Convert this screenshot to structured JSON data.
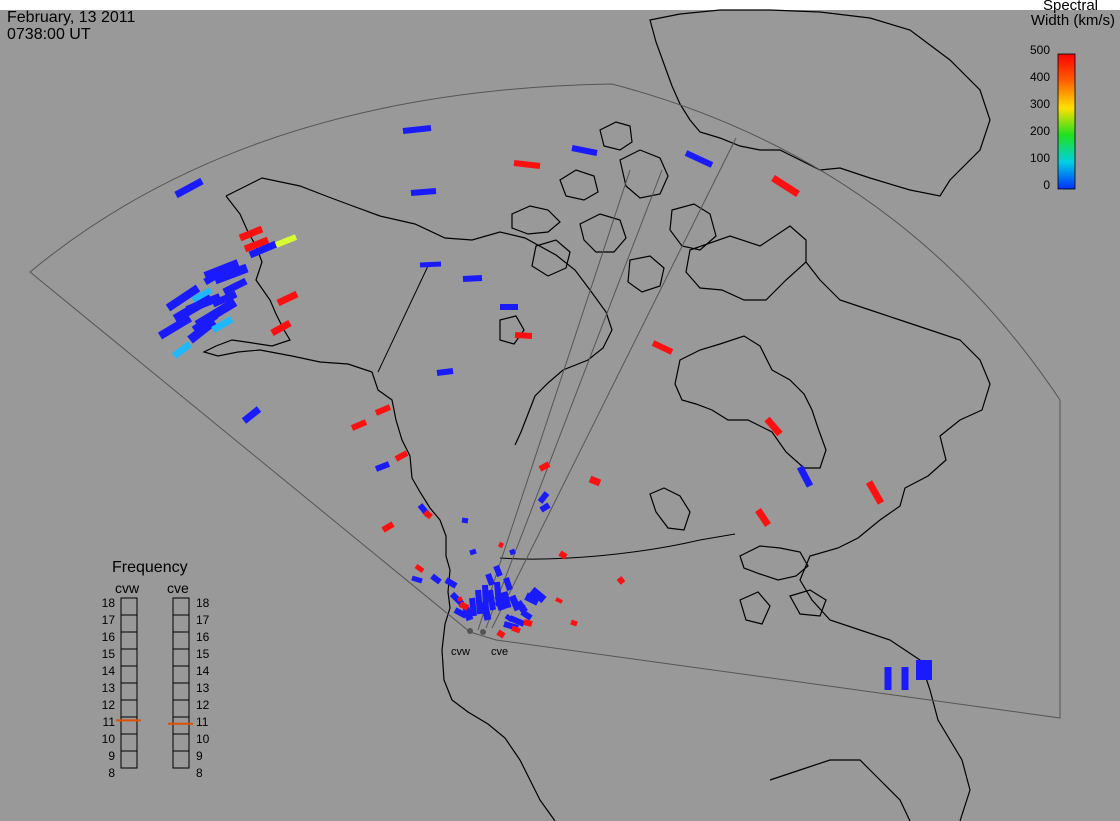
{
  "header": {
    "date": "February, 13 2011",
    "time": "0738:00 UT"
  },
  "colorbar": {
    "title_line1": "Spectral",
    "title_line2": "Width (km/s)",
    "ticks": [
      "500",
      "400",
      "300",
      "200",
      "100",
      "0"
    ],
    "range": [
      0,
      500
    ],
    "colors": [
      "#ff0000",
      "#ff8000",
      "#ffff00",
      "#00e000",
      "#00e0e0",
      "#0000ff"
    ]
  },
  "frequency": {
    "title": "Frequency",
    "radars": [
      {
        "name": "cvw",
        "value_mhz": 10.8
      },
      {
        "name": "cve",
        "value_mhz": 10.6
      }
    ],
    "scale": [
      "18",
      "17",
      "16",
      "15",
      "14",
      "13",
      "12",
      "11",
      "10",
      "9",
      "8"
    ],
    "indicator_color": "#e05000"
  },
  "radar_sites": [
    {
      "name": "cvw"
    },
    {
      "name": "cve"
    }
  ],
  "map": {
    "background": "#999999",
    "coastline_color": "#000000",
    "fov_color": "#555555",
    "echo_colors": {
      "low_width": "#1a1aff",
      "mid_width": "#1fb8ff",
      "high_width": "#ff1010",
      "moderate_width": "#d8ff30"
    }
  }
}
